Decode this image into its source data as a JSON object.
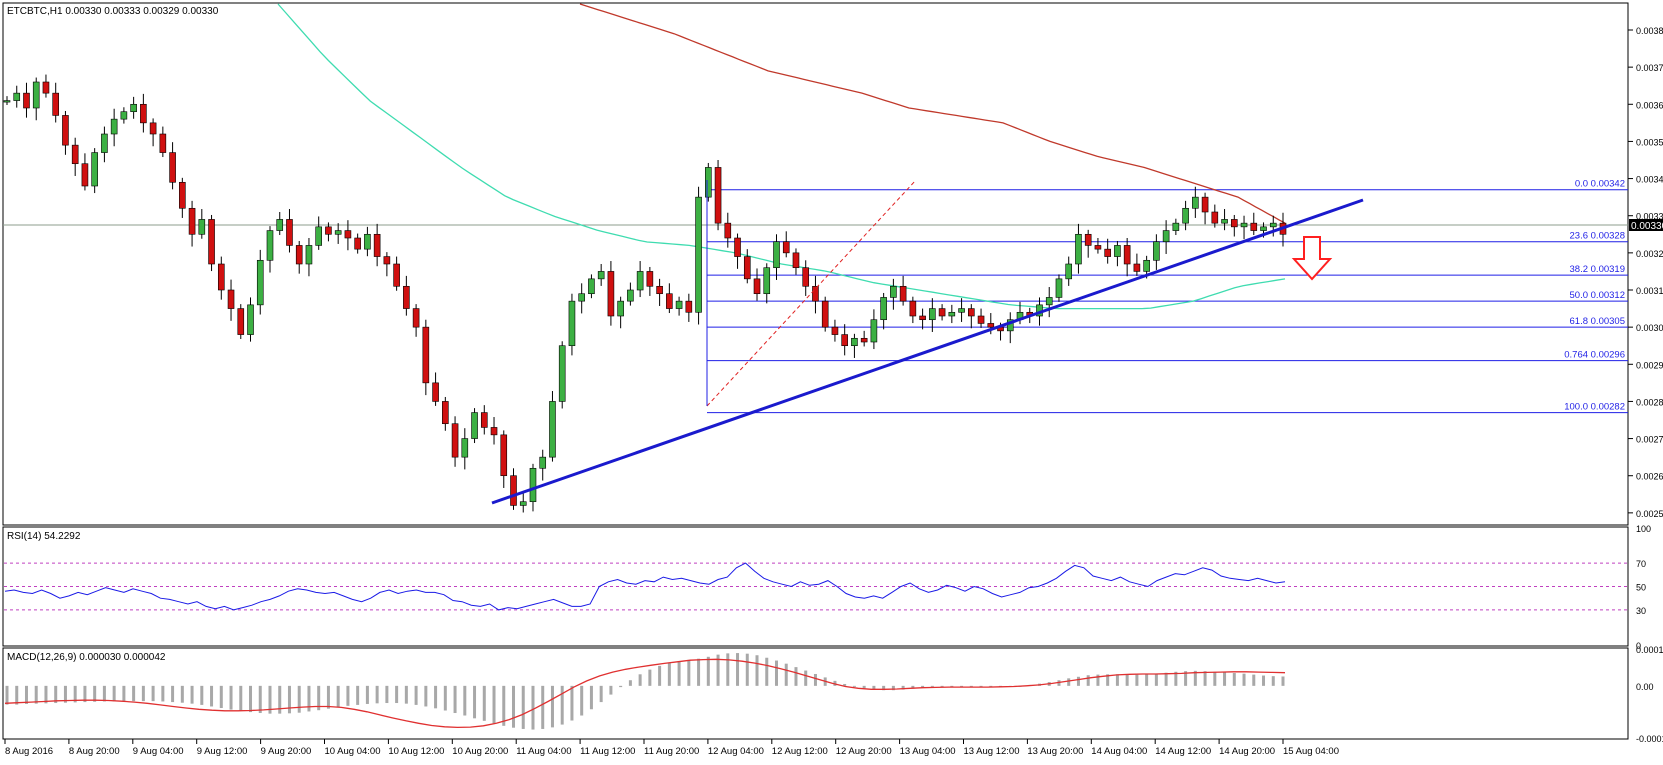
{
  "header": {
    "symbol_info": "ETCBTC,H1  0.00330 0.00333 0.00329 0.00330"
  },
  "colors": {
    "bull": "#3cb043",
    "bear": "#d01010",
    "ma_long": "#c0392b",
    "ma_short": "#3fdcb0",
    "fib": "#1f1fe6",
    "trendline": "#1a1acd",
    "arrow": "#ff2020",
    "rsi": "#1a1ae6",
    "macd_hist": "#a8a8a8",
    "macd_signal": "#e03030"
  },
  "chart_data": [
    {
      "type": "candlestick",
      "title": "ETCBTC,H1",
      "price_axis": {
        "ticks": [
          "0.00385",
          "0.00375",
          "0.00365",
          "0.00355",
          "0.00345",
          "0.00335",
          "0.00325",
          "0.00315",
          "0.00305",
          "0.00295",
          "0.00285",
          "0.00275",
          "0.00265",
          "0.00255"
        ],
        "range": [
          0.00252,
          0.00392
        ],
        "current_price": "0.00330"
      },
      "time_axis": {
        "labels": [
          "8 Aug 2016",
          "8 Aug 20:00",
          "9 Aug 04:00",
          "9 Aug 12:00",
          "9 Aug 20:00",
          "10 Aug 04:00",
          "10 Aug 12:00",
          "10 Aug 20:00",
          "11 Aug 04:00",
          "11 Aug 12:00",
          "11 Aug 20:00",
          "12 Aug 04:00",
          "12 Aug 12:00",
          "12 Aug 20:00",
          "13 Aug 04:00",
          "13 Aug 12:00",
          "13 Aug 20:00",
          "14 Aug 04:00",
          "14 Aug 12:00",
          "14 Aug 20:00",
          "15 Aug 04:00"
        ]
      },
      "close_path": [
        0.00366,
        0.00368,
        0.00364,
        0.00371,
        0.00368,
        0.00362,
        0.00354,
        0.00349,
        0.00343,
        0.00352,
        0.00357,
        0.00361,
        0.00363,
        0.00365,
        0.0036,
        0.00357,
        0.00352,
        0.00344,
        0.00337,
        0.0033,
        0.00334,
        0.00322,
        0.00315,
        0.0031,
        0.00303,
        0.00311,
        0.00323,
        0.00331,
        0.00334,
        0.00327,
        0.00322,
        0.00327,
        0.00332,
        0.0033,
        0.00331,
        0.00329,
        0.00326,
        0.0033,
        0.00324,
        0.00322,
        0.00316,
        0.0031,
        0.00305,
        0.0029,
        0.00285,
        0.00279,
        0.0027,
        0.00275,
        0.00282,
        0.00278,
        0.00276,
        0.00265,
        0.00257,
        0.00258,
        0.00267,
        0.0027,
        0.00285,
        0.003,
        0.00312,
        0.00314,
        0.00318,
        0.0032,
        0.00308,
        0.00312,
        0.00315,
        0.0032,
        0.00316,
        0.00314,
        0.0031,
        0.00312,
        0.00309,
        0.0034,
        0.00348,
        0.00333,
        0.00329,
        0.00324,
        0.00318,
        0.00314,
        0.00321,
        0.00328,
        0.00325,
        0.00321,
        0.00316,
        0.00312,
        0.00305,
        0.00303,
        0.003,
        0.00302,
        0.00301,
        0.00307,
        0.00313,
        0.00316,
        0.00312,
        0.00308,
        0.00307,
        0.0031,
        0.00308,
        0.00309,
        0.0031,
        0.00308,
        0.00306,
        0.00305,
        0.00304,
        0.00307,
        0.00309,
        0.00308,
        0.00311,
        0.00313,
        0.00318,
        0.00322,
        0.0033,
        0.00327,
        0.00326,
        0.00324,
        0.00327,
        0.00322,
        0.0032,
        0.00323,
        0.00328,
        0.00331,
        0.00333,
        0.00337,
        0.0034,
        0.00336,
        0.00333,
        0.00334,
        0.00332,
        0.00333,
        0.00331,
        0.00332,
        0.00333,
        0.0033
      ],
      "moving_averages": [
        {
          "ma_path": [
            0.00392,
            0.00378,
            0.00366,
            0.00357,
            0.00348,
            0.0034,
            0.00335,
            0.00331,
            0.00328,
            0.00327,
            0.00325,
            0.00322,
            0.0032,
            0.00317,
            0.00315,
            0.00313,
            0.00311,
            0.0031,
            0.0031,
            0.0031,
            0.00312,
            0.00316,
            0.00318
          ]
        },
        {
          "ma_path": [
            0.00392,
            0.00388,
            0.00384,
            0.00379,
            0.00374,
            0.00371,
            0.00368,
            0.00364,
            0.00362,
            0.0036,
            0.00355,
            0.00351,
            0.00348,
            0.00344,
            0.0034,
            0.00333
          ]
        }
      ],
      "fibonacci": [
        {
          "label": "0.0",
          "price": "0.00342"
        },
        {
          "label": "23.6",
          "price": "0.00328"
        },
        {
          "label": "38.2",
          "price": "0.00319"
        },
        {
          "label": "50.0",
          "price": "0.00312"
        },
        {
          "label": "61.8",
          "price": "0.00305"
        },
        {
          "label": "0.764",
          "price": "0.00296"
        },
        {
          "label": "100.0",
          "price": "0.00282"
        }
      ]
    },
    {
      "type": "line",
      "title": "RSI(14) 54.2292",
      "axis_ticks": [
        "100",
        "70",
        "50",
        "30",
        "0"
      ],
      "levels": [
        70,
        50,
        30
      ],
      "range": [
        0,
        100
      ],
      "values": [
        46,
        47,
        45,
        44,
        47,
        44,
        40,
        42,
        45,
        43,
        46,
        49,
        47,
        45,
        48,
        46,
        44,
        40,
        39,
        37,
        35,
        37,
        33,
        31,
        33,
        30,
        32,
        34,
        37,
        39,
        42,
        46,
        48,
        47,
        45,
        44,
        45,
        42,
        39,
        37,
        40,
        45,
        47,
        44,
        46,
        47,
        45,
        45,
        43,
        38,
        37,
        34,
        33,
        35,
        30,
        32,
        31,
        33,
        35,
        37,
        39,
        36,
        33,
        33,
        35,
        50,
        54,
        56,
        53,
        52,
        55,
        54,
        58,
        56,
        57,
        55,
        53,
        52,
        56,
        58,
        66,
        70,
        63,
        57,
        54,
        52,
        50,
        54,
        51,
        52,
        55,
        50,
        44,
        41,
        40,
        42,
        40,
        45,
        50,
        53,
        48,
        45,
        47,
        51,
        49,
        46,
        50,
        48,
        44,
        41,
        43,
        45,
        49,
        50,
        53,
        57,
        63,
        68,
        66,
        59,
        57,
        55,
        58,
        54,
        52,
        50,
        55,
        58,
        61,
        60,
        63,
        66,
        64,
        59,
        57,
        56,
        55,
        57,
        55,
        53,
        54
      ]
    },
    {
      "type": "bar",
      "title": "MACD(12,26,9) 0.000030 0.000042",
      "axis_ticks": [
        "0.000118",
        "0.00",
        "-0.000167"
      ],
      "range": [
        -0.000167,
        0.000118
      ],
      "histogram": [
        -6e-05,
        -6e-05,
        -5.8e-05,
        -5.7e-05,
        -5.6e-05,
        -5.5e-05,
        -5.4e-05,
        -5.3e-05,
        -5.2e-05,
        -5.1e-05,
        -5e-05,
        -5e-05,
        -4.9e-05,
        -4.9e-05,
        -4.9e-05,
        -4.9e-05,
        -5e-05,
        -5.2e-05,
        -5.4e-05,
        -5.7e-05,
        -6.1e-05,
        -6.6e-05,
        -7.1e-05,
        -7.6e-05,
        -8e-05,
        -8.4e-05,
        -8.7e-05,
        -8.9e-05,
        -8.9e-05,
        -8.8e-05,
        -8.6e-05,
        -8.2e-05,
        -7.8e-05,
        -7.3e-05,
        -6.8e-05,
        -6.4e-05,
        -6.1e-05,
        -5.8e-05,
        -5.6e-05,
        -5.5e-05,
        -5.5e-05,
        -5.7e-05,
        -6.1e-05,
        -6.6e-05,
        -7.2e-05,
        -7.9e-05,
        -8.7e-05,
        -9.5e-05,
        -0.000104,
        -0.000112,
        -0.00012,
        -0.000128,
        -0.000134,
        -0.000138,
        -0.00014,
        -0.000138,
        -0.000133,
        -0.000124,
        -0.000111,
        -9.5e-05,
        -7.5e-05,
        -5.2e-05,
        -2.8e-05,
        -4e-06,
        1.8e-05,
        3.7e-05,
        5.2e-05,
        6.4e-05,
        7.3e-05,
        7.9e-05,
        8.3e-05,
        8.7e-05,
        9.3e-05,
        0.0001,
        0.000104,
        0.000105,
        0.000103,
        9.8e-05,
        9e-05,
        8.1e-05,
        7.1e-05,
        6e-05,
        4.9e-05,
        3.8e-05,
        2.7e-05,
        1.6e-05,
        6e-06,
        -2e-06,
        -8e-06,
        -1.2e-05,
        -1.4e-05,
        -1.4e-05,
        -1.2e-05,
        -9e-06,
        -6e-06,
        -3e-06,
        -1e-06,
        0.0,
        0.0,
        -1e-06,
        -2e-06,
        -3e-06,
        -3e-06,
        -2e-06,
        0.0,
        3e-06,
        7e-06,
        1.2e-05,
        1.8e-05,
        2.4e-05,
        2.9e-05,
        3.4e-05,
        3.6e-05,
        3.7e-05,
        3.7e-05,
        3.6e-05,
        3.6e-05,
        3.7e-05,
        3.9e-05,
        4.2e-05,
        4.5e-05,
        4.7e-05,
        4.8e-05,
        4.7e-05,
        4.5e-05,
        4.3e-05,
        4.1e-05,
        3.9e-05,
        3.6e-05,
        3.3e-05,
        3.1e-05,
        3e-05
      ],
      "signal": [
        -5.6e-05,
        -5.4e-05,
        -5.2e-05,
        -5e-05,
        -4.8e-05,
        -4.7e-05,
        -4.6e-05,
        -4.6e-05,
        -4.7e-05,
        -4.9e-05,
        -5.2e-05,
        -5.6e-05,
        -6.1e-05,
        -6.6e-05,
        -7.1e-05,
        -7.5e-05,
        -7.8e-05,
        -8e-05,
        -8e-05,
        -7.9e-05,
        -7.7e-05,
        -7.4e-05,
        -7.1e-05,
        -6.8e-05,
        -6.6e-05,
        -6.6e-05,
        -6.9e-05,
        -7.5e-05,
        -8.3e-05,
        -9.3e-05,
        -0.000103,
        -0.000112,
        -0.00012,
        -0.000127,
        -0.000131,
        -0.000133,
        -0.000132,
        -0.000128,
        -0.00012,
        -0.000108,
        -9.2e-05,
        -7.2e-05,
        -5e-05,
        -2.7e-05,
        -4e-06,
        1.6e-05,
        3.2e-05,
        4.4e-05,
        5.3e-05,
        6e-05,
        6.6e-05,
        7.2e-05,
        7.7e-05,
        8.2e-05,
        8.4e-05,
        8.5e-05,
        8.3e-05,
        7.9e-05,
        7.3e-05,
        6.5e-05,
        5.5e-05,
        4.4e-05,
        3.2e-05,
        2e-05,
        8e-06,
        -2e-06,
        -8e-06,
        -1.1e-05,
        -1.1e-05,
        -1e-05,
        -8e-06,
        -6e-06,
        -5e-06,
        -4e-06,
        -4e-06,
        -4e-06,
        -4e-06,
        -3e-06,
        -2e-06,
        0.0,
        3e-06,
        8e-06,
        1.4e-05,
        2e-05,
        2.6e-05,
        3.1e-05,
        3.5e-05,
        3.7e-05,
        3.8e-05,
        3.8e-05,
        3.9e-05,
        4e-05,
        4.2e-05,
        4.3e-05,
        4.4e-05,
        4.5e-05,
        4.5e-05,
        4.4e-05,
        4.3e-05,
        4.2e-05
      ]
    }
  ]
}
